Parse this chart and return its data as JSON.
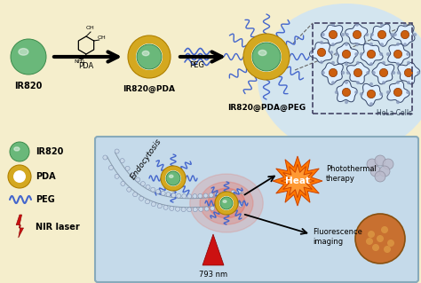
{
  "bg_color": "#f5eecc",
  "panel_bg": "#c8dff0",
  "box_bg": "#c5daea",
  "green_fill": "#6ab87a",
  "green_edge": "#3a8a4a",
  "green_hl": "#a0e0a0",
  "gold_fill": "#d4a820",
  "gold_edge": "#b08000",
  "peg_color": "#4466cc",
  "red_color": "#cc1111",
  "orange_fill": "#cc6010",
  "gray_color": "#999999",
  "mem_color": "#aabbcc",
  "mem_head_color": "#c8d8e8",
  "labels": {
    "ir820": "IR820",
    "ir820pda": "IR820@PDA",
    "ir820pdapeg": "IR820@PDA@PEG",
    "hela": "HeLa Cells",
    "legend_ir820": "IR820",
    "legend_pda": "PDA",
    "legend_peg": "PEG",
    "legend_nir": "NIR laser",
    "pda_label": "PDA",
    "peg_label": "PEG",
    "endocytosis": "Endocytosis",
    "nm793": "793 nm",
    "heat": "Heat",
    "photothermal": "Photothermal\ntherapy",
    "fluorescence": "Fluorescence\nimaging"
  }
}
